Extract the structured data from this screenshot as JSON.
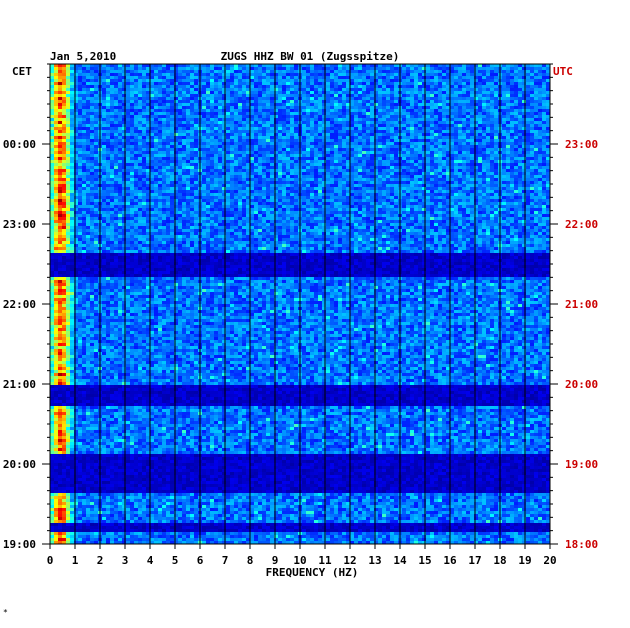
{
  "header": {
    "date": "Jan 5,2010",
    "station": "ZUGS HHZ BW 01 (Zugsspitze)"
  },
  "footer": {
    "mark": "*"
  },
  "colors": {
    "background": "#0000a0",
    "grid": "#000000",
    "utc_text": "#cc0000",
    "cet_text": "#000000"
  },
  "chart_data": {
    "type": "heatmap",
    "title": "ZUGS HHZ BW 01 (Zugsspitze)",
    "date": "Jan 5,2010",
    "xlabel": "FREQUENCY (HZ)",
    "xlim": [
      0,
      20
    ],
    "x_ticks": [
      "0",
      "1",
      "2",
      "3",
      "4",
      "5",
      "6",
      "7",
      "8",
      "9",
      "10",
      "11",
      "12",
      "13",
      "14",
      "15",
      "16",
      "17",
      "18",
      "19",
      "20"
    ],
    "left_axis_label": "CET",
    "right_axis_label": "UTC",
    "y_ticks_cet": [
      "00:00",
      "23:00",
      "22:00",
      "21:00",
      "20:00",
      "19:00"
    ],
    "y_ticks_utc": [
      "23:00",
      "22:00",
      "21:00",
      "20:00",
      "19:00",
      "18:00"
    ],
    "colormap": "jet"
  }
}
